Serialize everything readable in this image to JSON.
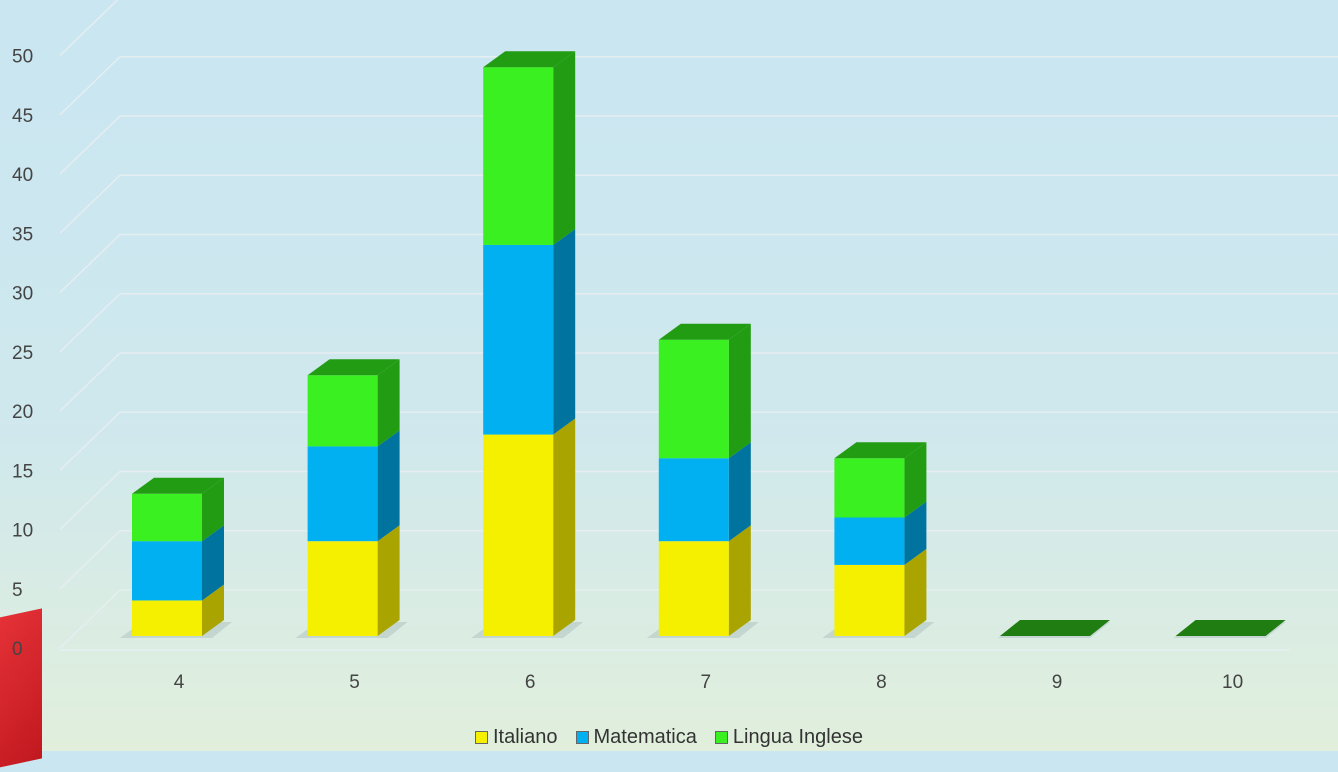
{
  "chart_data": {
    "type": "bar",
    "stacked": true,
    "style": "3d-column",
    "categories": [
      "4",
      "5",
      "6",
      "7",
      "8",
      "9",
      "10"
    ],
    "series": [
      {
        "name": "Italiano",
        "values": [
          3,
          8,
          17,
          8,
          6,
          0,
          0
        ],
        "color": "#f5f000",
        "side_color": "#a9a400"
      },
      {
        "name": "Matematica",
        "values": [
          5,
          8,
          16,
          7,
          4,
          0,
          0
        ],
        "color": "#00b0f0",
        "side_color": "#00739e"
      },
      {
        "name": "Lingua Inglese",
        "values": [
          4,
          6,
          15,
          10,
          5,
          0,
          0
        ],
        "color": "#3af020",
        "side_color": "#229c12"
      }
    ],
    "y_ticks": [
      "0",
      "5",
      "10",
      "15",
      "20",
      "25",
      "30",
      "35",
      "40",
      "45",
      "50"
    ],
    "ylim": [
      0,
      50
    ],
    "grid": true,
    "legend_position": "bottom"
  }
}
